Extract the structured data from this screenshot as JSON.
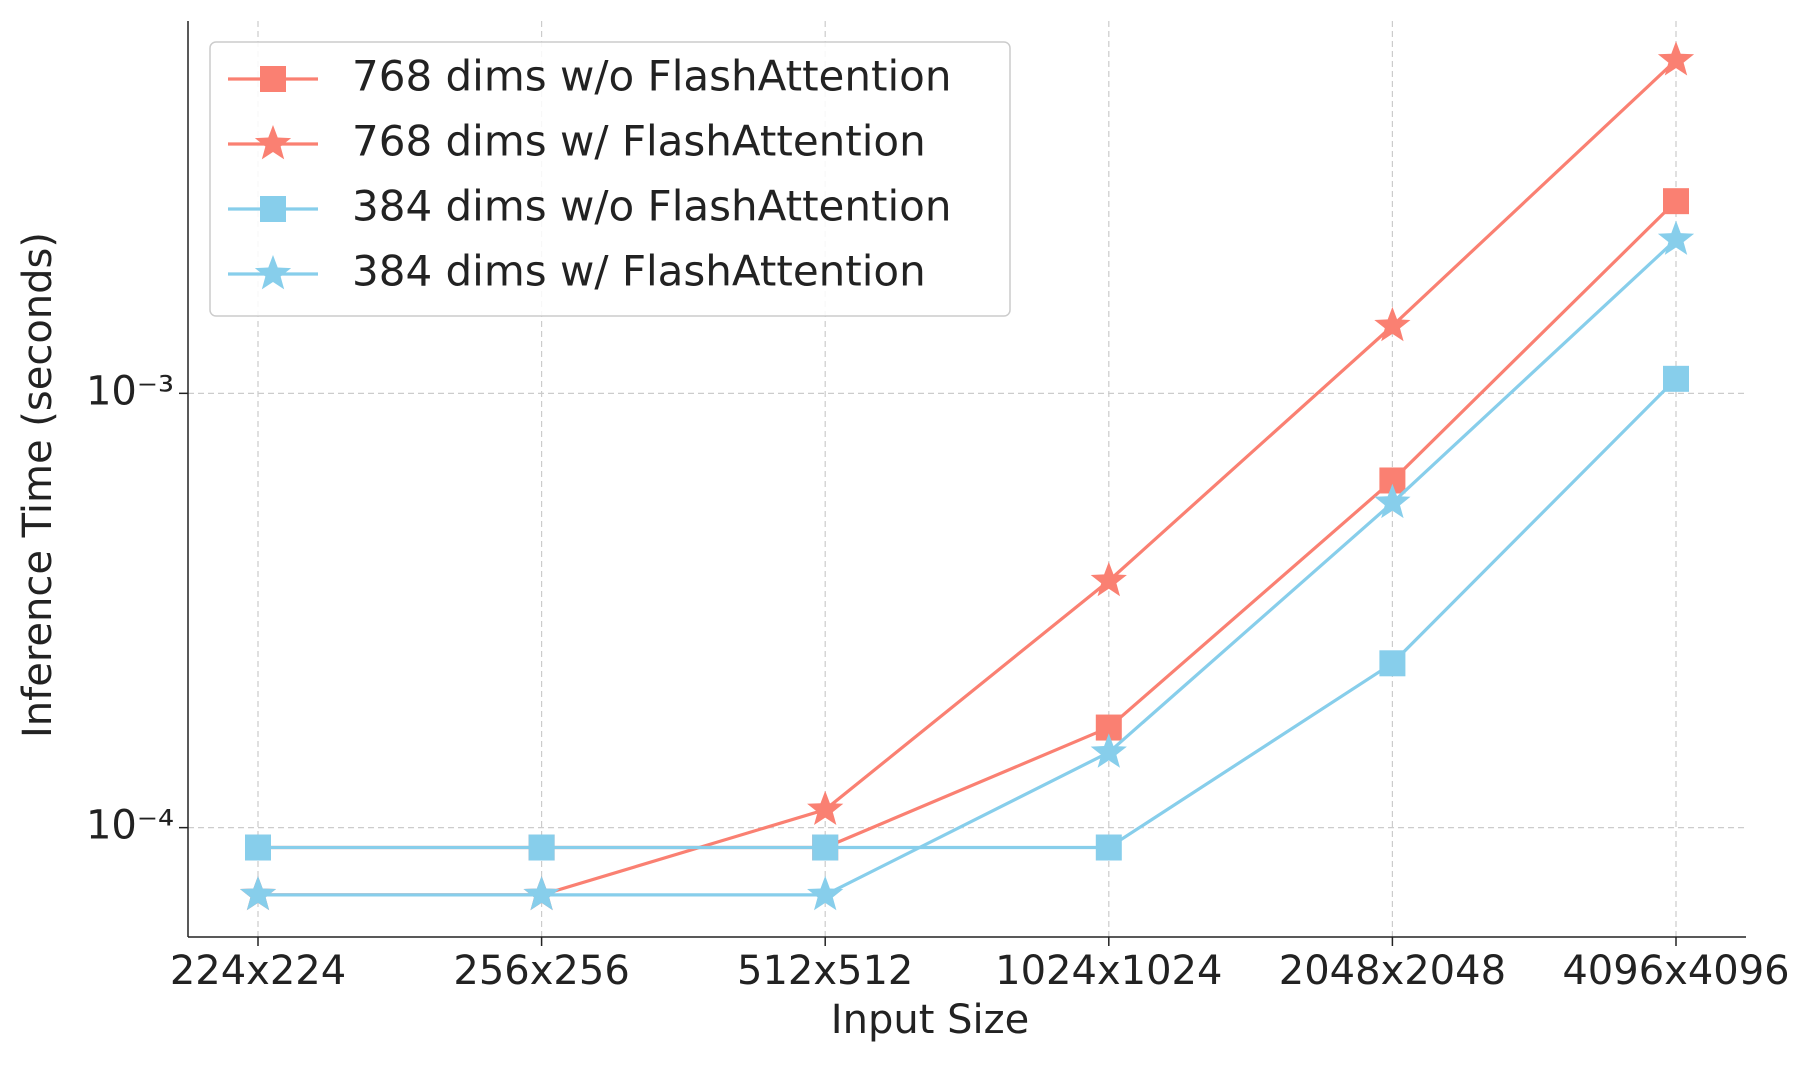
{
  "chart_data": {
    "type": "line",
    "x_label": "Input Size",
    "y_label": "Inference Time (seconds)",
    "categories": [
      "224x224",
      "256x256",
      "512x512",
      "1024x1024",
      "2048x2048",
      "4096x4096"
    ],
    "series": [
      {
        "name": "768 dims w/o FlashAttention",
        "color": "#fa8072",
        "marker": "square",
        "values": [
          9e-05,
          9e-05,
          9e-05,
          0.00017,
          0.00063,
          0.00277
        ]
      },
      {
        "name": "768 dims w/ FlashAttention",
        "color": "#fa8072",
        "marker": "star",
        "values": [
          7e-05,
          7e-05,
          0.00011,
          0.00037,
          0.00143,
          0.00585
        ]
      },
      {
        "name": "384 dims w/o FlashAttention",
        "color": "#87ceeb",
        "marker": "square",
        "values": [
          9e-05,
          9e-05,
          9e-05,
          9e-05,
          0.000239,
          0.00108
        ]
      },
      {
        "name": "384 dims w/ FlashAttention",
        "color": "#87ceeb",
        "marker": "star",
        "values": [
          7e-05,
          7e-05,
          7e-05,
          0.000149,
          0.00056,
          0.00226
        ]
      }
    ],
    "ylim": [
      5.6e-05,
      0.0072
    ],
    "yticks": [
      {
        "value": 0.0001,
        "label": "10⁻⁴"
      },
      {
        "value": 0.001,
        "label": "10⁻³"
      }
    ],
    "y_scale": "log",
    "grid": true,
    "legend": "upper left"
  }
}
